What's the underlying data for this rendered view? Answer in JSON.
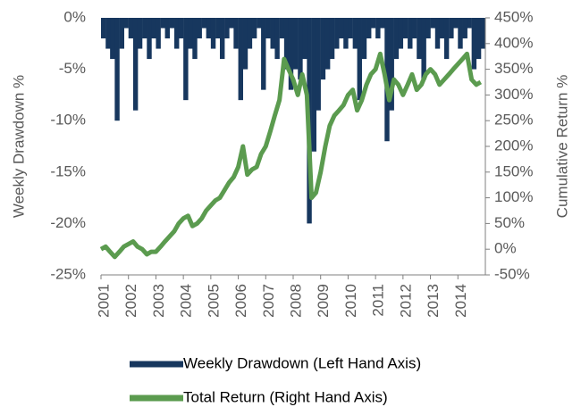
{
  "chart_data": {
    "type": "combo",
    "y_label": "Weekly Drawdown %",
    "y2_label": "Cumulative Return %",
    "x": [
      2001.0,
      2001.17,
      2001.33,
      2001.5,
      2001.67,
      2001.83,
      2002.0,
      2002.17,
      2002.33,
      2002.5,
      2002.67,
      2002.83,
      2003.0,
      2003.17,
      2003.33,
      2003.5,
      2003.67,
      2003.83,
      2004.0,
      2004.17,
      2004.33,
      2004.5,
      2004.67,
      2004.83,
      2005.0,
      2005.17,
      2005.33,
      2005.5,
      2005.67,
      2005.83,
      2006.0,
      2006.17,
      2006.33,
      2006.5,
      2006.67,
      2006.83,
      2007.0,
      2007.17,
      2007.33,
      2007.5,
      2007.67,
      2007.83,
      2008.0,
      2008.17,
      2008.33,
      2008.5,
      2008.67,
      2008.83,
      2009.0,
      2009.17,
      2009.33,
      2009.5,
      2009.67,
      2009.83,
      2010.0,
      2010.17,
      2010.33,
      2010.5,
      2010.67,
      2010.83,
      2011.0,
      2011.17,
      2011.33,
      2011.5,
      2011.67,
      2011.83,
      2012.0,
      2012.17,
      2012.33,
      2012.5,
      2012.67,
      2012.83,
      2013.0,
      2013.17,
      2013.33,
      2013.5,
      2013.67,
      2013.83,
      2014.0,
      2014.17,
      2014.33,
      2014.5,
      2014.67,
      2014.83
    ],
    "xlim": [
      2001,
      2015
    ],
    "xticks": [
      2001,
      2002,
      2003,
      2004,
      2005,
      2006,
      2007,
      2008,
      2009,
      2010,
      2011,
      2012,
      2013,
      2014
    ],
    "ylim": [
      -25,
      0
    ],
    "yticks": [
      {
        "value": 0,
        "label": "0%"
      },
      {
        "value": -5,
        "label": "-5%"
      },
      {
        "value": -10,
        "label": "-10%"
      },
      {
        "value": -15,
        "label": "-15%"
      },
      {
        "value": -20,
        "label": "-20%"
      },
      {
        "value": -25,
        "label": "-25%"
      }
    ],
    "y2lim": [
      -50,
      450
    ],
    "y2ticks": [
      {
        "value": 450,
        "label": "450%"
      },
      {
        "value": 400,
        "label": "400%"
      },
      {
        "value": 350,
        "label": "350%"
      },
      {
        "value": 300,
        "label": "300%"
      },
      {
        "value": 250,
        "label": "250%"
      },
      {
        "value": 200,
        "label": "200%"
      },
      {
        "value": 150,
        "label": "150%"
      },
      {
        "value": 100,
        "label": "100%"
      },
      {
        "value": 50,
        "label": "50%"
      },
      {
        "value": 0,
        "label": "0%"
      },
      {
        "value": -50,
        "label": "-50%"
      }
    ],
    "series": [
      {
        "name": "Weekly Drawdown (Left Hand Axis)",
        "type": "bar",
        "color": "#17375e",
        "values": [
          -2,
          -3,
          -4,
          -10,
          -3,
          -1,
          -2,
          -9,
          -3,
          -2,
          -4,
          -2,
          -3,
          -1,
          -2,
          -1,
          -3,
          -2,
          -8,
          -3,
          -4,
          -2,
          -1,
          -2,
          -3,
          -2,
          -4,
          -2,
          -1,
          -3,
          -8,
          -5,
          -3,
          -2,
          -1,
          -7,
          -2,
          -3,
          -4,
          -2,
          -5,
          -7,
          -5,
          -6,
          -4,
          -20,
          -13,
          -9,
          -6,
          -5,
          -4,
          -3,
          -2,
          -3,
          -2,
          -3,
          -8,
          -4,
          -2,
          -1,
          -2,
          -1,
          -12,
          -9,
          -4,
          -3,
          -2,
          -3,
          -2,
          -4,
          -6,
          -2,
          -1,
          -3,
          -2,
          -4,
          -2,
          -1,
          -3,
          -2,
          -1,
          -5,
          -4,
          -3
        ]
      },
      {
        "name": "Total Return (Right Hand Axis)",
        "type": "line",
        "axis": "y2",
        "color": "#5b9b4f",
        "values": [
          0,
          5,
          -5,
          -15,
          -5,
          5,
          10,
          15,
          5,
          0,
          -10,
          -5,
          -5,
          5,
          15,
          25,
          35,
          50,
          60,
          65,
          45,
          50,
          60,
          75,
          85,
          95,
          100,
          115,
          130,
          140,
          160,
          200,
          145,
          155,
          160,
          185,
          200,
          230,
          260,
          290,
          370,
          350,
          330,
          300,
          340,
          300,
          100,
          110,
          150,
          200,
          240,
          260,
          270,
          280,
          300,
          310,
          270,
          290,
          320,
          340,
          350,
          380,
          340,
          290,
          330,
          320,
          300,
          320,
          340,
          310,
          320,
          340,
          350,
          340,
          320,
          330,
          340,
          350,
          360,
          370,
          380,
          330,
          320,
          325
        ]
      }
    ]
  }
}
